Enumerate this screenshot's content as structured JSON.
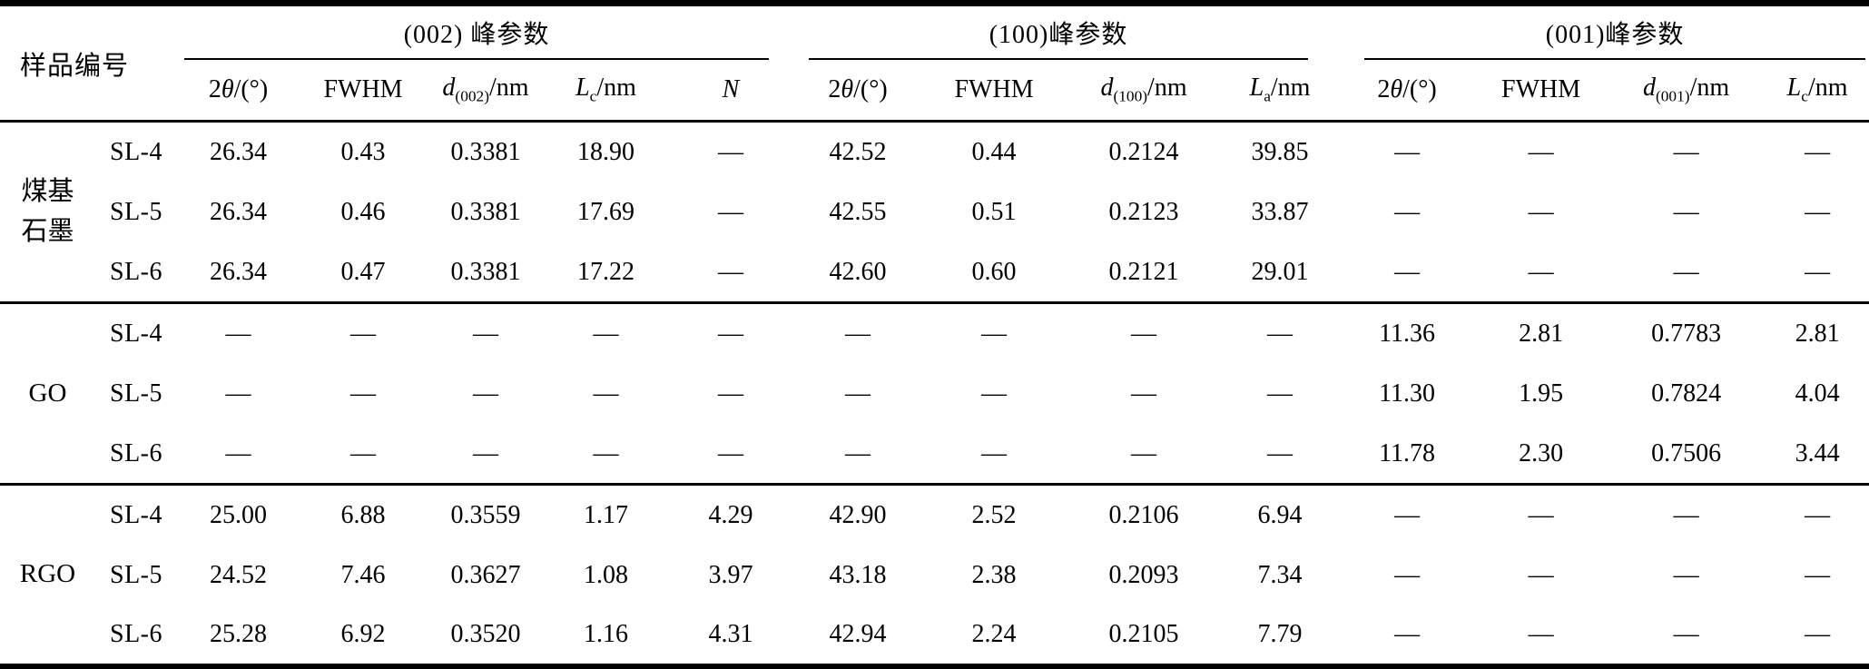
{
  "table": {
    "corner_label": "样品编号",
    "groups": [
      {
        "label": "(002) 峰参数",
        "columns": [
          {
            "key": "two-theta-002",
            "parts": [
              {
                "t": "2"
              },
              {
                "t": "θ",
                "i": 1
              },
              {
                "t": "/(°)"
              }
            ]
          },
          {
            "key": "fwhm-002",
            "parts": [
              {
                "t": "FWHM"
              }
            ]
          },
          {
            "key": "d-002",
            "parts": [
              {
                "t": "d",
                "i": 1
              },
              {
                "t": "(002)",
                "s": 1
              },
              {
                "t": "/nm"
              }
            ]
          },
          {
            "key": "lc-002",
            "parts": [
              {
                "t": "L",
                "i": 1
              },
              {
                "t": "c",
                "s": 1
              },
              {
                "t": "/nm"
              }
            ]
          },
          {
            "key": "n-002",
            "parts": [
              {
                "t": "N",
                "i": 1
              }
            ]
          }
        ]
      },
      {
        "label": "(100)峰参数",
        "columns": [
          {
            "key": "two-theta-100",
            "parts": [
              {
                "t": "2"
              },
              {
                "t": "θ",
                "i": 1
              },
              {
                "t": "/(°)"
              }
            ]
          },
          {
            "key": "fwhm-100",
            "parts": [
              {
                "t": "FWHM"
              }
            ]
          },
          {
            "key": "d-100",
            "parts": [
              {
                "t": "d",
                "i": 1
              },
              {
                "t": "(100)",
                "s": 1
              },
              {
                "t": "/nm"
              }
            ]
          },
          {
            "key": "la-100",
            "parts": [
              {
                "t": "L",
                "i": 1
              },
              {
                "t": "a",
                "s": 1
              },
              {
                "t": "/nm"
              }
            ]
          }
        ]
      },
      {
        "label": "(001)峰参数",
        "columns": [
          {
            "key": "two-theta-001",
            "parts": [
              {
                "t": "2"
              },
              {
                "t": "θ",
                "i": 1
              },
              {
                "t": "/(°)"
              }
            ]
          },
          {
            "key": "fwhm-001",
            "parts": [
              {
                "t": "FWHM"
              }
            ]
          },
          {
            "key": "d-001",
            "parts": [
              {
                "t": "d",
                "i": 1
              },
              {
                "t": "(001)",
                "s": 1
              },
              {
                "t": "/nm"
              }
            ]
          },
          {
            "key": "lc-001",
            "parts": [
              {
                "t": "L",
                "i": 1
              },
              {
                "t": "c",
                "s": 1
              },
              {
                "t": "/nm"
              }
            ]
          }
        ]
      }
    ],
    "row_groups": [
      {
        "label": "煤基石墨",
        "rows": [
          {
            "sample": "SL-4",
            "values": [
              "26.34",
              "0.43",
              "0.3381",
              "18.90",
              "—",
              "42.52",
              "0.44",
              "0.2124",
              "39.85",
              "—",
              "—",
              "—",
              "—"
            ]
          },
          {
            "sample": "SL-5",
            "values": [
              "26.34",
              "0.46",
              "0.3381",
              "17.69",
              "—",
              "42.55",
              "0.51",
              "0.2123",
              "33.87",
              "—",
              "—",
              "—",
              "—"
            ]
          },
          {
            "sample": "SL-6",
            "values": [
              "26.34",
              "0.47",
              "0.3381",
              "17.22",
              "—",
              "42.60",
              "0.60",
              "0.2121",
              "29.01",
              "—",
              "—",
              "—",
              "—"
            ]
          }
        ]
      },
      {
        "label": "GO",
        "rows": [
          {
            "sample": "SL-4",
            "values": [
              "—",
              "—",
              "—",
              "—",
              "—",
              "—",
              "—",
              "—",
              "—",
              "11.36",
              "2.81",
              "0.7783",
              "2.81"
            ]
          },
          {
            "sample": "SL-5",
            "values": [
              "—",
              "—",
              "—",
              "—",
              "—",
              "—",
              "—",
              "—",
              "—",
              "11.30",
              "1.95",
              "0.7824",
              "4.04"
            ]
          },
          {
            "sample": "SL-6",
            "values": [
              "—",
              "—",
              "—",
              "—",
              "—",
              "—",
              "—",
              "—",
              "—",
              "11.78",
              "2.30",
              "0.7506",
              "3.44"
            ]
          }
        ]
      },
      {
        "label": "RGO",
        "rows": [
          {
            "sample": "SL-4",
            "values": [
              "25.00",
              "6.88",
              "0.3559",
              "1.17",
              "4.29",
              "42.90",
              "2.52",
              "0.2106",
              "6.94",
              "—",
              "—",
              "—",
              "—"
            ]
          },
          {
            "sample": "SL-5",
            "values": [
              "24.52",
              "7.46",
              "0.3627",
              "1.08",
              "3.97",
              "43.18",
              "2.38",
              "0.2093",
              "7.34",
              "—",
              "—",
              "—",
              "—"
            ]
          },
          {
            "sample": "SL-6",
            "values": [
              "25.28",
              "6.92",
              "0.3520",
              "1.16",
              "4.31",
              "42.94",
              "2.24",
              "0.2105",
              "7.79",
              "—",
              "—",
              "—",
              "—"
            ]
          }
        ]
      }
    ],
    "colors": {
      "text": "#000000",
      "rule": "#000000",
      "background": "#ffffff"
    }
  }
}
